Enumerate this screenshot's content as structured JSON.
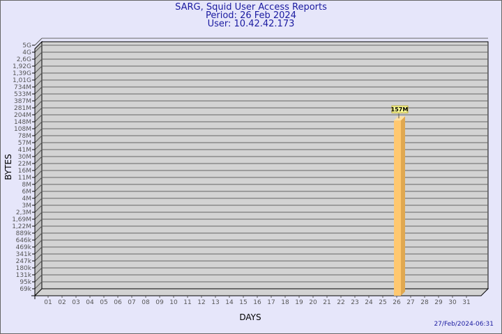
{
  "chart_data": {
    "type": "bar",
    "title": "SARG, Squid User Access Reports",
    "subtitle": [
      "Period: 26 Feb 2024",
      "User: 10.42.42.173"
    ],
    "xlabel": "DAYS",
    "ylabel": "BYTES",
    "y_scale": "log",
    "grid": true,
    "categories": [
      "01",
      "02",
      "03",
      "04",
      "05",
      "06",
      "07",
      "08",
      "09",
      "10",
      "11",
      "12",
      "13",
      "14",
      "15",
      "16",
      "17",
      "18",
      "19",
      "20",
      "21",
      "22",
      "23",
      "24",
      "25",
      "26",
      "27",
      "28",
      "29",
      "30",
      "31"
    ],
    "y_ticks": [
      {
        "label": "69k",
        "value": 69000
      },
      {
        "label": "95k",
        "value": 95000
      },
      {
        "label": "131k",
        "value": 131000
      },
      {
        "label": "180k",
        "value": 180000
      },
      {
        "label": "247k",
        "value": 247000
      },
      {
        "label": "341k",
        "value": 341000
      },
      {
        "label": "469k",
        "value": 469000
      },
      {
        "label": "646k",
        "value": 646000
      },
      {
        "label": "889k",
        "value": 889000
      },
      {
        "label": "1,22M",
        "value": 1220000
      },
      {
        "label": "1,69M",
        "value": 1690000
      },
      {
        "label": "2,3M",
        "value": 2300000
      },
      {
        "label": "3M",
        "value": 3000000
      },
      {
        "label": "4M",
        "value": 4000000
      },
      {
        "label": "6M",
        "value": 6000000
      },
      {
        "label": "8M",
        "value": 8000000
      },
      {
        "label": "11M",
        "value": 11000000
      },
      {
        "label": "16M",
        "value": 16000000
      },
      {
        "label": "22M",
        "value": 22000000
      },
      {
        "label": "30M",
        "value": 30000000
      },
      {
        "label": "41M",
        "value": 41000000
      },
      {
        "label": "57M",
        "value": 57000000
      },
      {
        "label": "78M",
        "value": 78000000
      },
      {
        "label": "108M",
        "value": 108000000
      },
      {
        "label": "148M",
        "value": 148000000
      },
      {
        "label": "204M",
        "value": 204000000
      },
      {
        "label": "281M",
        "value": 281000000
      },
      {
        "label": "387M",
        "value": 387000000
      },
      {
        "label": "533M",
        "value": 533000000
      },
      {
        "label": "734M",
        "value": 734000000
      },
      {
        "label": "1,01G",
        "value": 1010000000
      },
      {
        "label": "1,39G",
        "value": 1390000000
      },
      {
        "label": "1,92G",
        "value": 1920000000
      },
      {
        "label": "2,6G",
        "value": 2600000000
      },
      {
        "label": "4G",
        "value": 4000000000
      },
      {
        "label": "5G",
        "value": 5000000000
      }
    ],
    "bars": [
      {
        "category": "26",
        "value": 157000000,
        "label": "157M"
      }
    ],
    "colors": {
      "bar_front": "#ffc870",
      "bar_side": "#e0a850",
      "bar_top": "#ffe0a0",
      "plot_bg": "#d3d3d3",
      "label_bg": "#ffff99"
    }
  },
  "footer": {
    "timestamp": "27/Feb/2024-06:31"
  }
}
